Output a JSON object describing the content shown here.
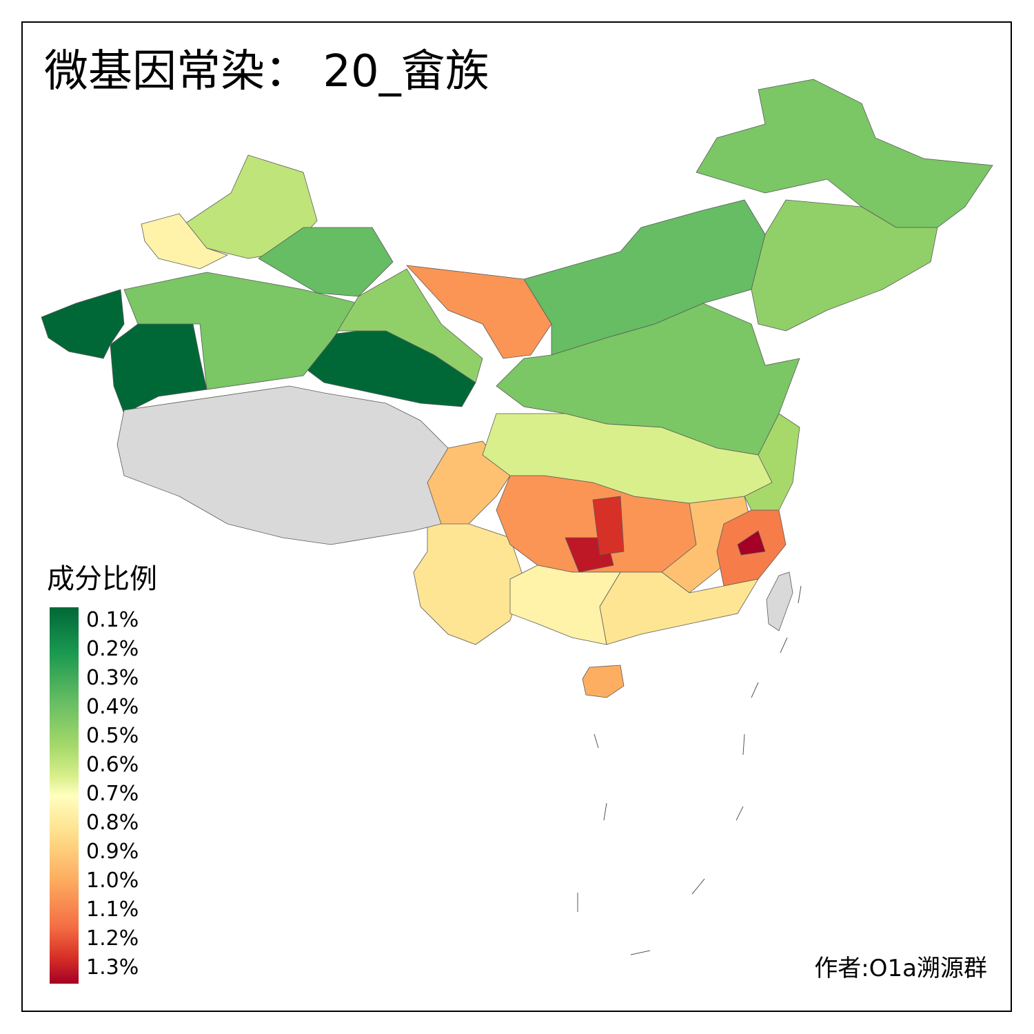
{
  "title": "微基因常染： 20_畲族",
  "legend": {
    "title": "成分比例",
    "ticks": [
      "0.1%",
      "0.2%",
      "0.3%",
      "0.4%",
      "0.5%",
      "0.6%",
      "0.7%",
      "0.8%",
      "0.9%",
      "1.0%",
      "1.1%",
      "1.2%",
      "1.3%"
    ],
    "color_scale": {
      "low": "#006837",
      "mid": "#ffffbf",
      "high": "#a50026",
      "missing": "#d9d9d9"
    }
  },
  "credit": "作者:O1a溯源群",
  "regions": [
    {
      "name": "southern-xinjiang",
      "value": 0.1
    },
    {
      "name": "western-xinjiang",
      "value": 0.1
    },
    {
      "name": "haixi-qinghai",
      "value": 0.1
    },
    {
      "name": "central-xinjiang",
      "value": 0.45
    },
    {
      "name": "northern-xinjiang",
      "value": 0.6
    },
    {
      "name": "northwest-xinjiang",
      "value": 0.75
    },
    {
      "name": "eastern-xinjiang",
      "value": 0.4
    },
    {
      "name": "gansu-west",
      "value": 0.5
    },
    {
      "name": "alxa-inner-mongolia",
      "value": 1.0
    },
    {
      "name": "inner-mongolia-central",
      "value": 0.4
    },
    {
      "name": "heilongjiang",
      "value": 0.45
    },
    {
      "name": "jilin-liaoning",
      "value": 0.5
    },
    {
      "name": "north-china-plain",
      "value": 0.45
    },
    {
      "name": "sichuan-west",
      "value": 0.9
    },
    {
      "name": "yunnan",
      "value": 0.8
    },
    {
      "name": "guizhou-hunan",
      "value": 1.0
    },
    {
      "name": "guizhou-core",
      "value": 1.25
    },
    {
      "name": "hunan-west",
      "value": 1.2
    },
    {
      "name": "jiangxi",
      "value": 0.9
    },
    {
      "name": "fujian",
      "value": 1.05
    },
    {
      "name": "fujian-coast",
      "value": 1.3
    },
    {
      "name": "guangdong",
      "value": 0.8
    },
    {
      "name": "guangxi",
      "value": 0.75
    },
    {
      "name": "hainan",
      "value": 0.95
    },
    {
      "name": "hubei-anhui",
      "value": 0.65
    },
    {
      "name": "jiangsu-zhejiang",
      "value": 0.55
    },
    {
      "name": "tibet",
      "value": null
    },
    {
      "name": "taiwan",
      "value": null
    }
  ]
}
